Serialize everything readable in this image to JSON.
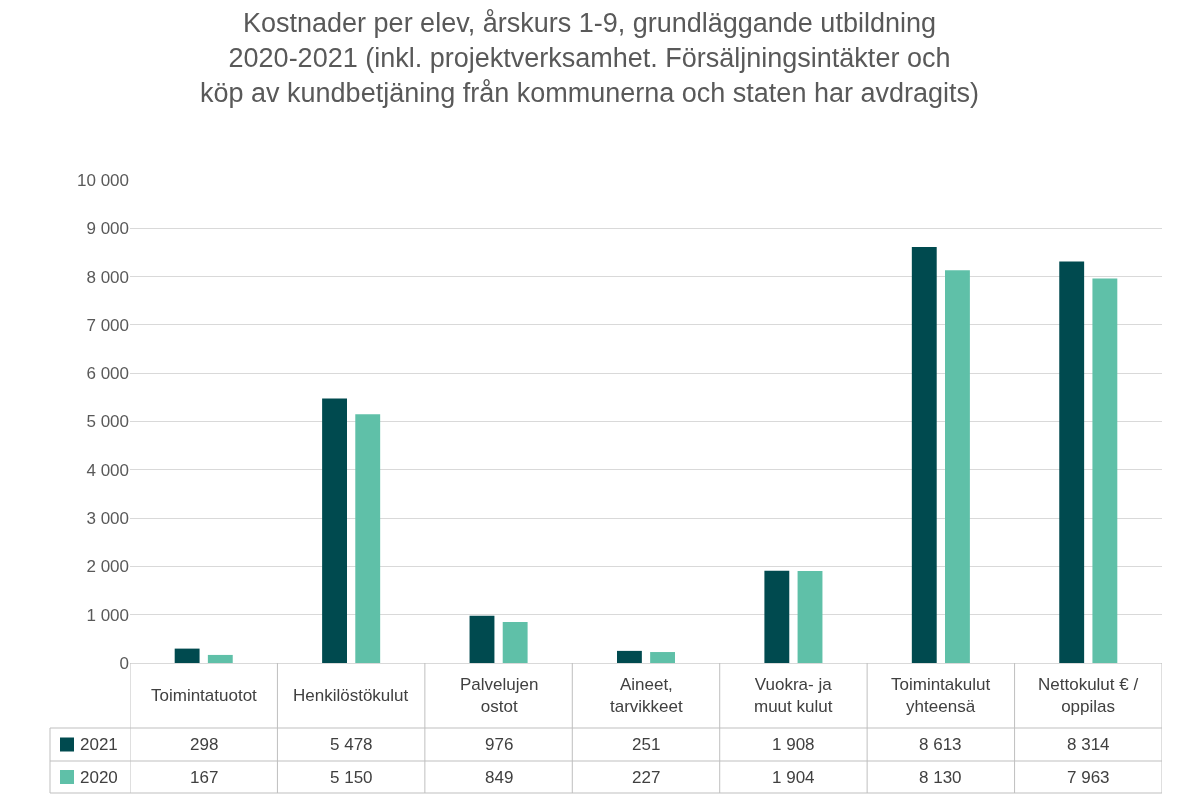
{
  "chart_data": {
    "type": "bar",
    "title": "Kostnader per elev, årskurs 1-9, grundläggande utbildning 2020-2021 (inkl. projektverksamhet. Försäljningsintäkter och köp av kundbetjäning från kommunerna och staten har avdragits)",
    "categories": [
      "Toimintatuotot",
      "Henkilöstökulut",
      "Palvelujen ostot",
      "Aineet, tarvikkeet",
      "Vuokra- ja muut kulut",
      "Toimintakulut yhteensä",
      "Nettokulut € / oppilas"
    ],
    "series": [
      {
        "name": "2021",
        "color": "#004a4f",
        "values": [
          298,
          5478,
          976,
          251,
          1908,
          8613,
          8314
        ],
        "value_labels": [
          "298",
          "5 478",
          "976",
          "251",
          "1 908",
          "8 613",
          "8 314"
        ]
      },
      {
        "name": "2020",
        "color": "#5fc0a8",
        "values": [
          167,
          5150,
          849,
          227,
          1904,
          8130,
          7963
        ],
        "value_labels": [
          "167",
          "5 150",
          "849",
          "227",
          "1 904",
          "8 130",
          "7 963"
        ]
      }
    ],
    "ylim": [
      0,
      10000
    ],
    "yticks": [
      0,
      {
        "value": 1000,
        "label": "1 000"
      },
      {
        "value": 2000,
        "label": "2 000"
      },
      {
        "value": 3000,
        "label": "3 000"
      },
      {
        "value": 4000,
        "label": "4 000"
      },
      {
        "value": 5000,
        "label": "5 000"
      },
      {
        "value": 6000,
        "label": "6 000"
      },
      {
        "value": 7000,
        "label": "7 000"
      },
      {
        "value": 8000,
        "label": "8 000"
      },
      {
        "value": 9000,
        "label": "9 000"
      },
      {
        "value": 10000,
        "label": "10 000"
      }
    ],
    "grid": "y",
    "legend": "bottom"
  }
}
